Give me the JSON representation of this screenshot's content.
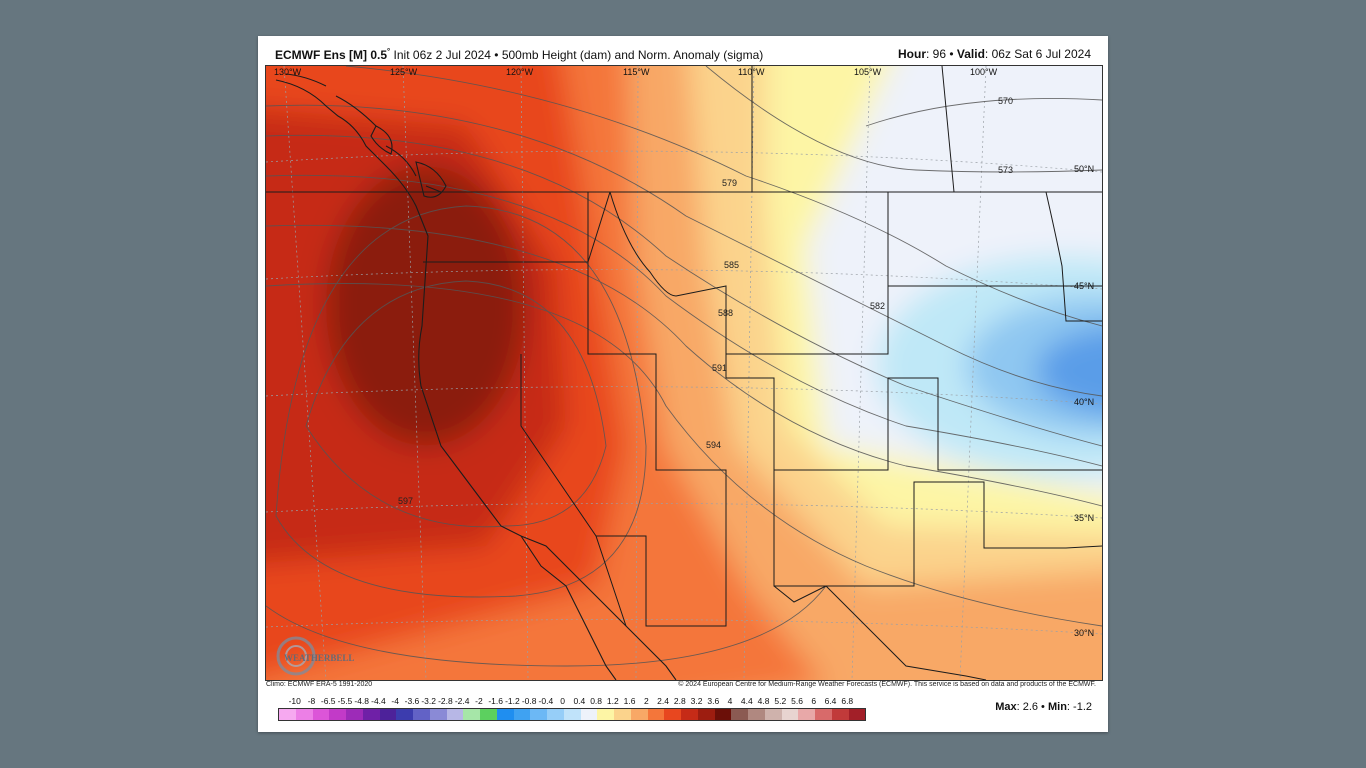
{
  "header": {
    "model": "ECMWF Ens [M] 0.5",
    "degree": "°",
    "init": " Init 06z 2 Jul 2024",
    "field": " • 500mb Height (dam) and Norm. Anomaly (sigma)",
    "hour_label": "Hour",
    "hour_value": ": 96 • ",
    "valid_label": "Valid",
    "valid_value": ": 06z Sat 6 Jul 2024"
  },
  "map": {
    "longitude_labels": [
      "130°W",
      "125°W",
      "120°W",
      "115°W",
      "110°W",
      "105°W",
      "100°W"
    ],
    "latitude_labels": [
      "50°N",
      "45°N",
      "40°N",
      "35°N",
      "30°N"
    ],
    "contour_labels": [
      "570",
      "573",
      "579",
      "582",
      "585",
      "588",
      "591",
      "594",
      "597"
    ],
    "logo_text": "WEATHERBELL",
    "colors": {
      "max_anomaly": "#8b1a10",
      "strong_positive": "#c62b17",
      "positive": "#e8471f",
      "moderate_positive": "#f4763a",
      "light_positive": "#f8a866",
      "slight_positive": "#fbd38c",
      "near_zero_positive": "#fdf5a5",
      "neutral": "#eef2fa",
      "slight_negative": "#bfe8f7",
      "negative": "#8fc7f1",
      "strong_negative": "#5a9de8"
    }
  },
  "footer": {
    "climo": "Climo: ECMWF ERA-5 1991-2020",
    "copyright": "© 2024 European Centre for Medium-Range Weather Forecasts (ECMWF). This service is based on data and products of the ECMWF."
  },
  "colorbar": {
    "labels": [
      "-10",
      "-8",
      "-6.5",
      "-5.5",
      "-4.8",
      "-4.4",
      "-4",
      "-3.6",
      "-3.2",
      "-2.8",
      "-2.4",
      "-2",
      "-1.6",
      "-1.2",
      "-0.8",
      "-0.4",
      "0",
      "0.4",
      "0.8",
      "1.2",
      "1.6",
      "2",
      "2.4",
      "2.8",
      "3.2",
      "3.6",
      "4",
      "4.4",
      "4.8",
      "5.2",
      "5.6",
      "6",
      "6.4",
      "6.8"
    ],
    "colors": [
      "#f6a9f0",
      "#ec7fe6",
      "#dc55d8",
      "#c23ac8",
      "#9d2bb8",
      "#6f20a7",
      "#4d229a",
      "#3c3cae",
      "#6262c6",
      "#8a8ad6",
      "#b7b7e6",
      "#a6e6a8",
      "#5cd05f",
      "#1f8ef0",
      "#3fa2f2",
      "#6cb8f5",
      "#96cef8",
      "#c0e3fa",
      "#eef2fa",
      "#fdf5a5",
      "#fbd38c",
      "#f8a866",
      "#f4763a",
      "#e8471f",
      "#c62b17",
      "#9d1d10",
      "#6b0f08",
      "#8b5a52",
      "#b08880",
      "#cfb2ac",
      "#e8d4d0",
      "#e8a8a8",
      "#d86a6a",
      "#c13a3a",
      "#a21f28"
    ]
  },
  "stats": {
    "max_label": "Max",
    "max_value": ": 2.6",
    "sep": " • ",
    "min_label": "Min",
    "min_value": ": -1.2"
  }
}
